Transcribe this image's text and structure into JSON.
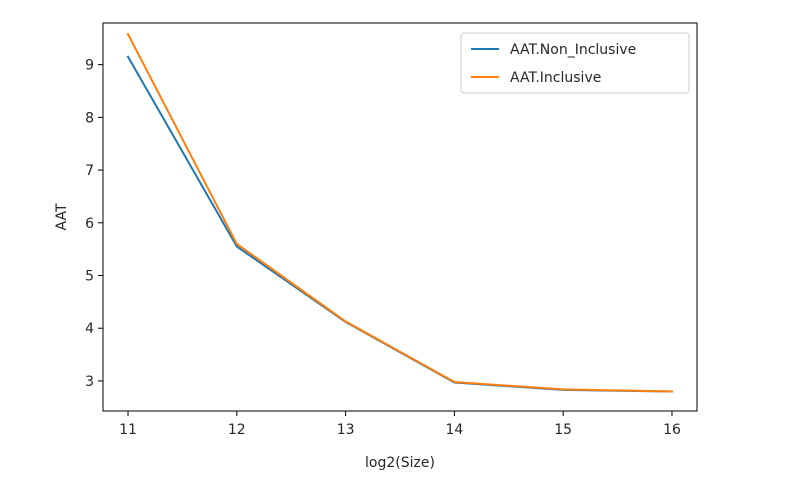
{
  "chart_data": {
    "type": "line",
    "title": "",
    "xlabel": "log2(Size)",
    "ylabel": "AAT",
    "xlim": [
      10.77,
      16.23
    ],
    "ylim": [
      2.43,
      9.79
    ],
    "xticks": [
      11,
      12,
      13,
      14,
      15,
      16
    ],
    "yticks": [
      3,
      4,
      5,
      6,
      7,
      8,
      9
    ],
    "grid": false,
    "legend_position": "top-right",
    "x": [
      11,
      12,
      13,
      14,
      15,
      16
    ],
    "series": [
      {
        "name": "AAT.Non_Inclusive",
        "color": "#1f77b4",
        "values": [
          9.15,
          5.55,
          4.12,
          2.97,
          2.83,
          2.8
        ]
      },
      {
        "name": "AAT.Inclusive",
        "color": "#ff7f0e",
        "values": [
          9.58,
          5.6,
          4.13,
          2.98,
          2.84,
          2.8
        ]
      }
    ]
  }
}
